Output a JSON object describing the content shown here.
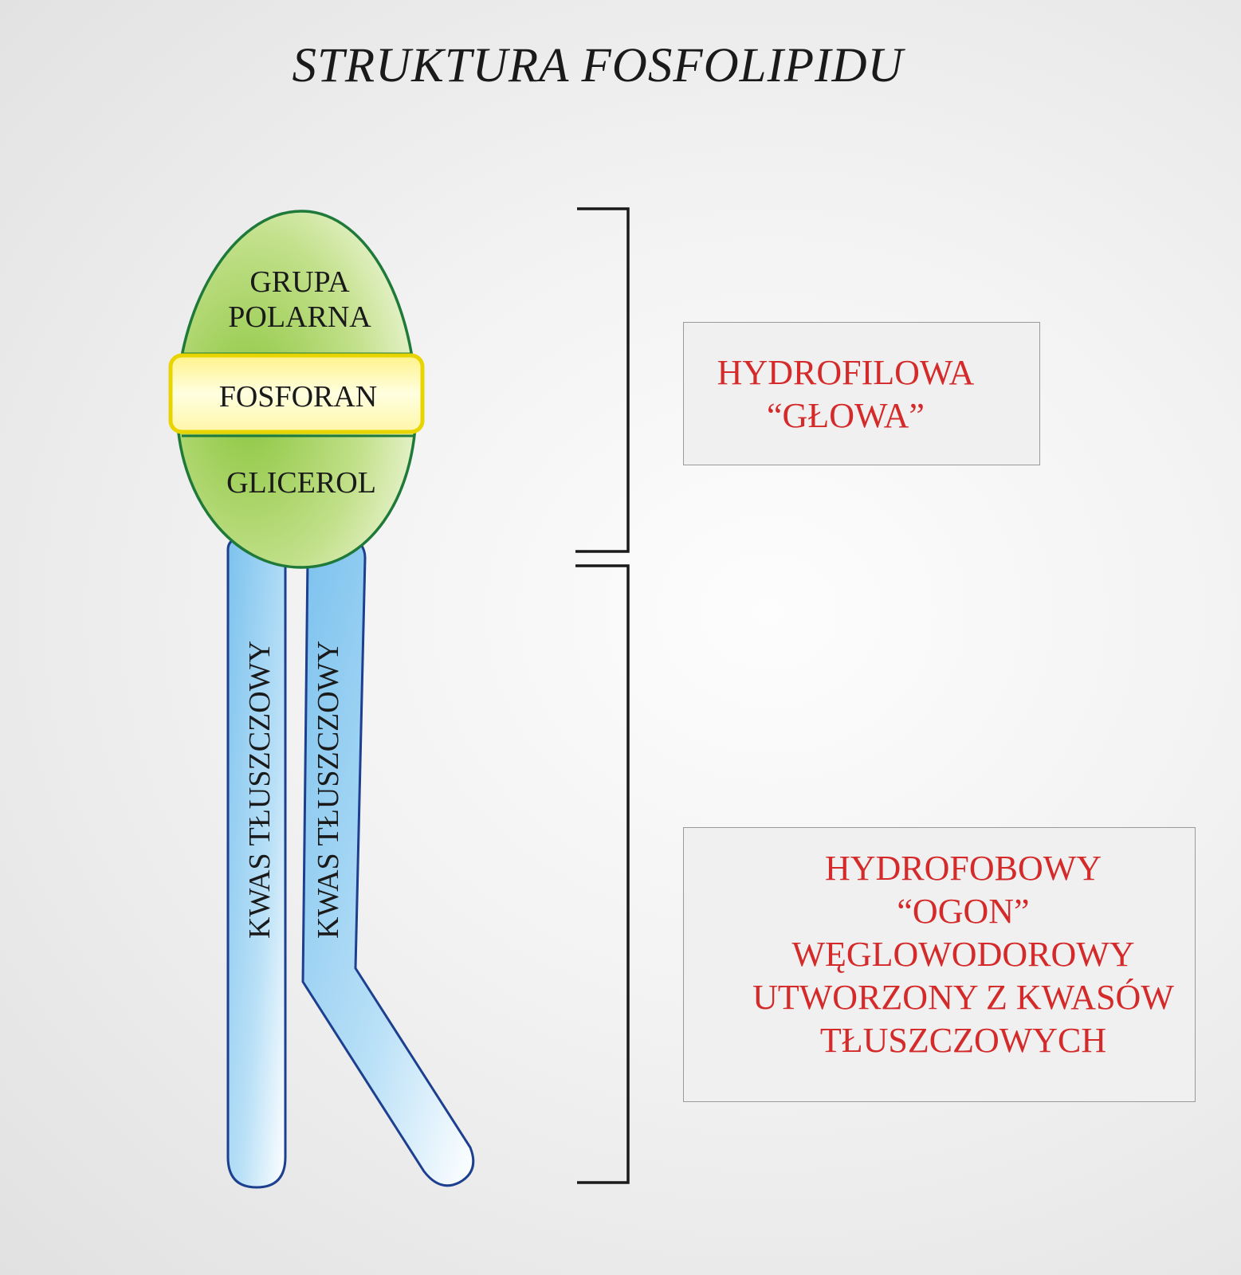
{
  "title": "STRUKTURA FOSFOLIPIDU",
  "head": {
    "polar_group_line1": "GRUPA",
    "polar_group_line2": "POLARNA",
    "phosphate": "FOSFORAN",
    "glycerol": "GLICEROL"
  },
  "tails": {
    "left_label": "KWAS TŁUSZCZOWY",
    "right_label": "KWAS TŁUSZCZOWY"
  },
  "labels": {
    "hydrophilic": [
      "HYDROFILOWA",
      "“GŁOWA”"
    ],
    "hydrophobic": [
      "HYDROFOBOWY",
      "“OGON”",
      "WĘGLOWODOROWY",
      "UTWORZONY Z KWASÓW",
      "TŁUSZCZOWYCH"
    ]
  },
  "colors": {
    "head_fill": "#a8d45a",
    "head_stroke": "#1f7a3a",
    "phosphate_fill": "#fff7a0",
    "phosphate_stroke": "#e8d400",
    "tail_fill": "#8ccbf0",
    "tail_stroke": "#1c3f8f",
    "label_text": "#d42a2a"
  }
}
